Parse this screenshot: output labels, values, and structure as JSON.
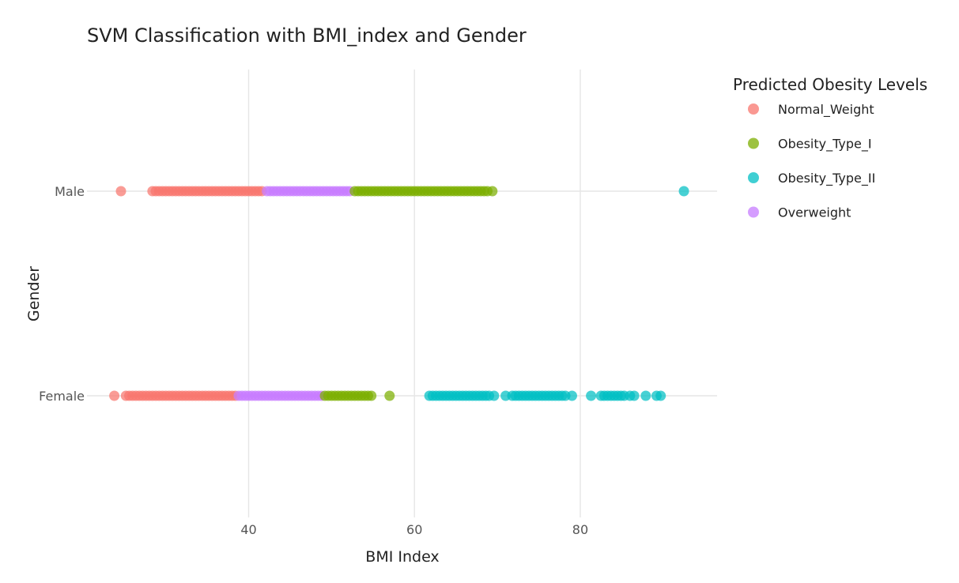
{
  "chart_data": {
    "type": "scatter",
    "title": "SVM Classification with BMI_index and Gender",
    "xlabel": "BMI Index",
    "ylabel": "Gender",
    "xlim": [
      20.5,
      96.5
    ],
    "x_ticks": [
      40,
      60,
      80
    ],
    "categories": [
      "Female",
      "Male"
    ],
    "grid": true,
    "legend": {
      "title": "Predicted Obesity Levels",
      "placement": "right"
    },
    "series": [
      {
        "name": "Normal_Weight",
        "color": "#F8766D",
        "category": "Male",
        "x": [
          24.6,
          28.4,
          28.8,
          29.2,
          29.6,
          30.0,
          30.4,
          30.8,
          31.2,
          31.6,
          32.0,
          32.4,
          32.8,
          33.2,
          33.6,
          34.0,
          34.4,
          34.8,
          35.2,
          35.6,
          36.0,
          36.4,
          36.8,
          37.2,
          37.6,
          38.0,
          38.4,
          38.8,
          39.2,
          39.6,
          40.0,
          40.4,
          40.8,
          41.2,
          41.6
        ]
      },
      {
        "name": "Overweight",
        "color": "#C77CFF",
        "category": "Male",
        "x": [
          42.2,
          42.6,
          43.0,
          43.4,
          43.8,
          44.2,
          44.6,
          45.0,
          45.4,
          45.8,
          46.2,
          46.6,
          47.0,
          47.4,
          47.8,
          48.2,
          48.6,
          49.0,
          49.4,
          49.8,
          50.2,
          50.6,
          51.0,
          51.4,
          51.8,
          52.2
        ]
      },
      {
        "name": "Obesity_Type_I",
        "color": "#7CAE00",
        "category": "Male",
        "x": [
          52.8,
          53.2,
          53.6,
          54.0,
          54.4,
          54.8,
          55.2,
          55.6,
          56.0,
          56.4,
          56.8,
          57.2,
          57.6,
          58.0,
          58.4,
          58.8,
          59.2,
          59.6,
          60.0,
          60.4,
          60.8,
          61.2,
          61.6,
          62.0,
          62.4,
          62.8,
          63.2,
          63.6,
          64.0,
          64.4,
          64.8,
          65.2,
          65.6,
          66.0,
          66.4,
          66.8,
          67.2,
          67.6,
          68.0,
          68.4,
          68.8,
          69.4
        ]
      },
      {
        "name": "Obesity_Type_II",
        "color": "#00BFC4",
        "category": "Male",
        "x": [
          92.5
        ]
      },
      {
        "name": "Normal_Weight",
        "color": "#F8766D",
        "category": "Female",
        "x": [
          23.8,
          25.2,
          25.6,
          26.0,
          26.4,
          26.8,
          27.2,
          27.6,
          28.0,
          28.4,
          28.8,
          29.2,
          29.6,
          30.0,
          30.4,
          30.8,
          31.2,
          31.6,
          32.0,
          32.4,
          32.8,
          33.2,
          33.6,
          34.0,
          34.4,
          34.8,
          35.2,
          35.6,
          36.0,
          36.4,
          36.8,
          37.2,
          37.6,
          38.0,
          38.4
        ]
      },
      {
        "name": "Overweight",
        "color": "#C77CFF",
        "category": "Female",
        "x": [
          38.8,
          39.2,
          39.6,
          40.0,
          40.4,
          40.8,
          41.2,
          41.6,
          42.0,
          42.4,
          42.8,
          43.2,
          43.6,
          44.0,
          44.4,
          44.8,
          45.2,
          45.6,
          46.0,
          46.4,
          46.8,
          47.2,
          47.6,
          48.0,
          48.4,
          48.8
        ]
      },
      {
        "name": "Obesity_Type_I",
        "color": "#7CAE00",
        "category": "Female",
        "x": [
          49.2,
          49.6,
          50.0,
          50.4,
          50.8,
          51.2,
          51.6,
          52.0,
          52.4,
          52.8,
          53.2,
          53.6,
          54.0,
          54.4,
          54.8,
          57.0
        ]
      },
      {
        "name": "Obesity_Type_II",
        "color": "#00BFC4",
        "category": "Female",
        "x": [
          61.8,
          62.2,
          62.6,
          63.0,
          63.4,
          63.8,
          64.2,
          64.6,
          65.0,
          65.4,
          65.8,
          66.2,
          66.6,
          67.0,
          67.4,
          67.8,
          68.2,
          68.6,
          69.0,
          69.6,
          71.0,
          71.8,
          72.2,
          72.6,
          73.0,
          73.4,
          73.8,
          74.2,
          74.6,
          75.0,
          75.4,
          75.8,
          76.2,
          76.6,
          77.0,
          77.4,
          77.8,
          78.2,
          79.0,
          81.3,
          82.5,
          82.9,
          83.3,
          83.7,
          84.1,
          84.5,
          84.9,
          85.3,
          86.0,
          86.5,
          87.9,
          89.2,
          89.7
        ]
      }
    ],
    "legend_entries": [
      {
        "name": "Normal_Weight",
        "color": "#F8766D"
      },
      {
        "name": "Obesity_Type_I",
        "color": "#7CAE00"
      },
      {
        "name": "Obesity_Type_II",
        "color": "#00BFC4"
      },
      {
        "name": "Overweight",
        "color": "#C77CFF"
      }
    ]
  }
}
